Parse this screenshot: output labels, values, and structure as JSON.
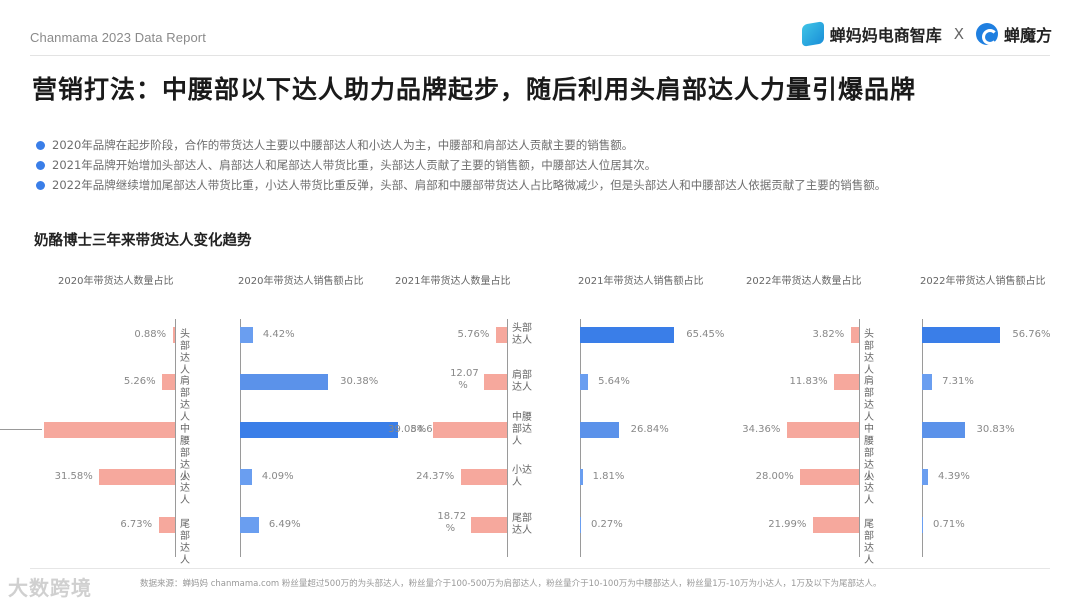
{
  "header": {
    "report_label": "Chanmama 2023 Data Report",
    "brand_left": "蝉妈妈电商智库",
    "brand_sep": "X",
    "brand_right": "蝉魔方"
  },
  "title": "营销打法：中腰部以下达人助力品牌起步，随后利用头肩部达人力量引爆品牌",
  "bullets": [
    "2020年品牌在起步阶段，合作的带货达人主要以中腰部达人和小达人为主，中腰部和肩部达人贡献主要的销售额。",
    "2021年品牌开始增加头部达人、肩部达人和尾部达人带货比重，头部达人贡献了主要的销售额，中腰部达人位居其次。",
    "2022年品牌继续增加尾部达人带货比重，小达人带货比重反弹，头部、肩部和中腰部带货达人占比略微减少，但是头部达人和中腰部达人依据贡献了主要的销售额。"
  ],
  "subtitle": "奶酪博士三年来带货达人变化趋势",
  "chart_data": {
    "type": "bar",
    "title": "奶酪博士三年来带货达人变化趋势",
    "orientation": "horizontal-butterfly",
    "categories": [
      "头部达人",
      "肩部达人",
      "中腰部达人",
      "小达人",
      "尾部达人"
    ],
    "panels": [
      {
        "year": "2020",
        "count_title": "2020年带货达人数量占比",
        "sales_title": "2020年带货达人销售额占比",
        "count_values": [
          0.88,
          5.26,
          54.61,
          31.58,
          6.73
        ],
        "count_labels": [
          "0.88%",
          "5.26%",
          "",
          "31.58%",
          "6.73%"
        ],
        "sales_values": [
          4.42,
          30.38,
          54.61,
          4.09,
          6.49
        ],
        "sales_labels": [
          "4.42%",
          "30.38%",
          "54.61%",
          "4.09%",
          "6.49%"
        ]
      },
      {
        "year": "2021",
        "count_title": "2021年带货达人数量占比",
        "sales_title": "2021年带货达人销售额占比",
        "count_values": [
          5.76,
          12.07,
          39.08,
          24.37,
          18.72
        ],
        "count_labels": [
          "5.76%",
          "12.07%",
          "39.08%",
          "24.37%",
          "18.72%"
        ],
        "sales_values": [
          65.45,
          5.64,
          26.84,
          1.81,
          0.27
        ],
        "sales_labels": [
          "65.45%",
          "5.64%",
          "26.84%",
          "1.81%",
          "0.27%"
        ]
      },
      {
        "year": "2022",
        "count_title": "2022年带货达人数量占比",
        "sales_title": "2022年带货达人销售额占比",
        "count_values": [
          3.82,
          11.83,
          34.36,
          28.0,
          21.99
        ],
        "count_labels": [
          "3.82%",
          "11.83%",
          "34.36%",
          "28.00%",
          "21.99%"
        ],
        "sales_values": [
          56.76,
          7.31,
          30.83,
          4.39,
          0.71
        ],
        "sales_labels": [
          "56.76%",
          "7.31%",
          "30.83%",
          "4.39%",
          "0.71%"
        ]
      }
    ],
    "series_colors": {
      "count": "#f6a89d",
      "sales": "#3a7ee8"
    },
    "xlabel": "",
    "ylabel": ""
  },
  "footer": {
    "note": "数据来源：蝉妈妈 chanmama.com  粉丝量超过500万的为头部达人，粉丝量介于100-500万为肩部达人，粉丝量介于10-100万为中腰部达人，粉丝量1万-10万为小达人，1万及以下为尾部达人。",
    "watermark": "大数跨境"
  }
}
